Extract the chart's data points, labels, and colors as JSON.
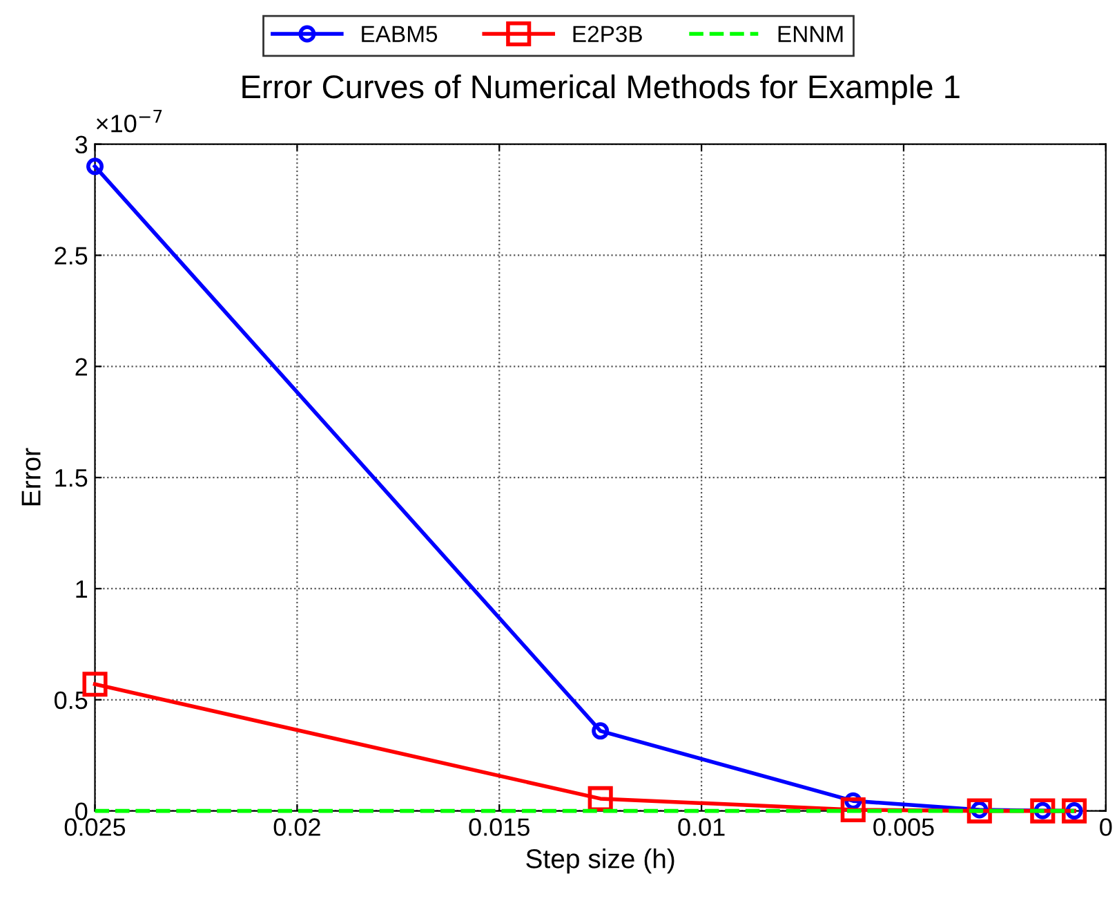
{
  "chart_data": {
    "type": "line",
    "title": "Error Curves of Numerical Methods for Example 1",
    "xlabel": "Step size (h)",
    "ylabel": "Error",
    "annotations": [
      "×10$^{−7}$"
    ],
    "x": [
      0.025,
      0.0125,
      0.00625,
      0.003125,
      0.0015625,
      0.00078125
    ],
    "series": [
      {
        "name": "EABM5",
        "color": "#0000ff",
        "marker": "circle",
        "line_style": "solid",
        "values": [
          2.9,
          0.36,
          0.045,
          0.005,
          0.001,
          0.0
        ]
      },
      {
        "name": "E2P3B",
        "color": "#ff0000",
        "marker": "square",
        "line_style": "solid",
        "values": [
          0.57,
          0.055,
          0.005,
          0.0,
          0.0,
          0.0
        ]
      },
      {
        "name": "ENNM",
        "color": "#00ff00",
        "marker": "none",
        "line_style": "dashed",
        "values": [
          0.0,
          0.0,
          0.0,
          0.0,
          0.0,
          0.0
        ]
      }
    ],
    "xlim": [
      0.025,
      0
    ],
    "xticks": [
      0.025,
      0.02,
      0.015,
      0.01,
      0.005,
      0
    ],
    "ylim": [
      0,
      3
    ],
    "yticks": [
      0,
      0.5,
      1,
      1.5,
      2,
      2.5,
      3
    ],
    "grid": true,
    "legend": "top"
  }
}
